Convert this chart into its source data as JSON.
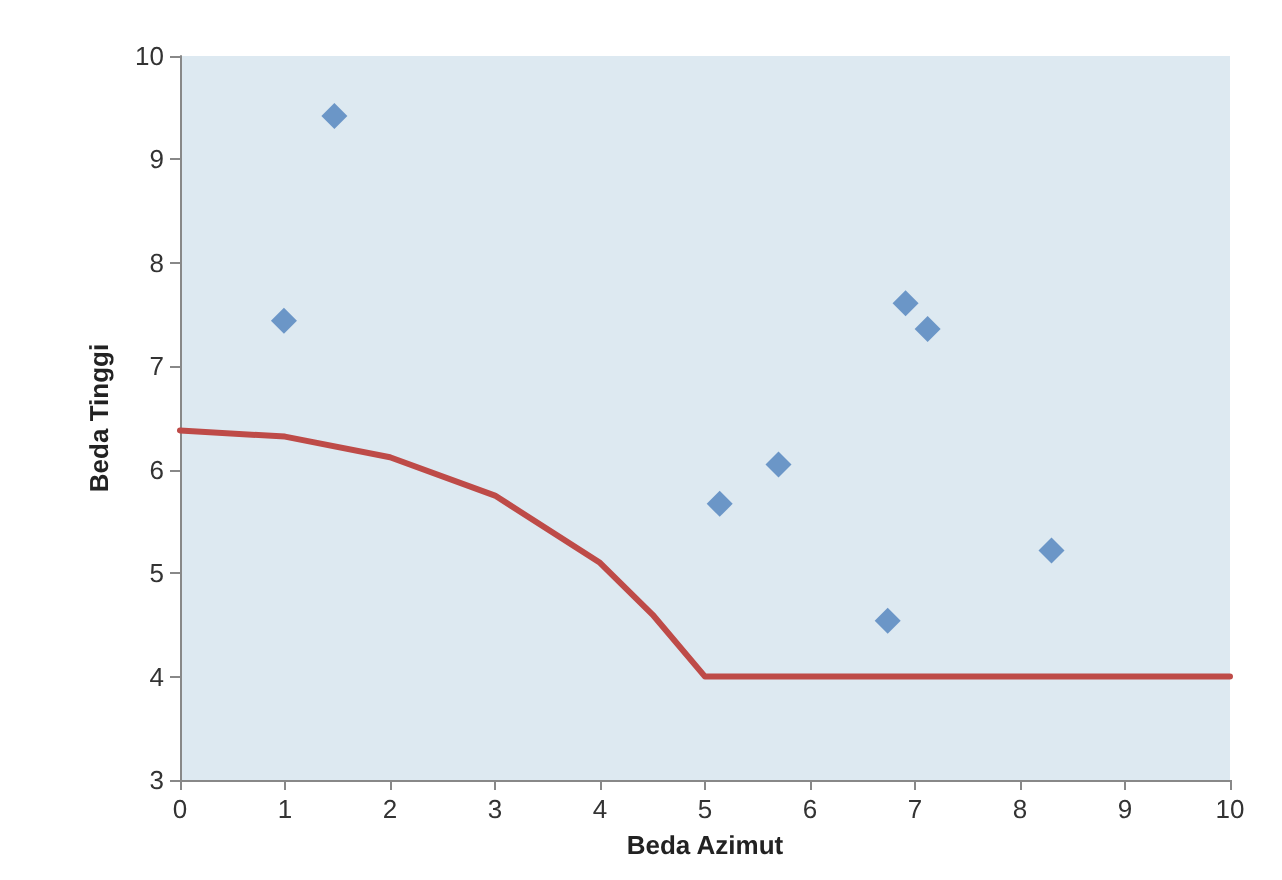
{
  "chart_data": {
    "type": "scatter",
    "xlabel": "Beda Azimut",
    "ylabel": "Beda Tinggi",
    "xlim": [
      0,
      10
    ],
    "xticks": [
      0,
      1,
      2,
      3,
      4,
      5,
      6,
      7,
      8,
      9,
      10
    ],
    "ylim": [
      3,
      10
    ],
    "yticks": [
      3,
      4,
      5,
      6,
      7,
      8,
      9,
      10
    ],
    "grid": false,
    "marker": "diamond",
    "series": [
      {
        "color": "#4f81bd",
        "x": [
          0.99,
          1.47,
          5.14,
          5.7,
          6.74,
          6.91,
          7.12,
          8.3
        ],
        "values": [
          7.44,
          9.42,
          5.67,
          6.05,
          4.54,
          7.61,
          7.36,
          5.22
        ]
      },
      {
        "type": "line",
        "color": "#be4b48",
        "marker": "none",
        "line_style": "solid",
        "x": [
          0,
          1,
          2,
          3,
          4,
          4.5,
          5,
          10
        ],
        "values": [
          6.38,
          6.32,
          6.12,
          5.75,
          5.1,
          4.6,
          4.0,
          4.0
        ]
      }
    ]
  }
}
